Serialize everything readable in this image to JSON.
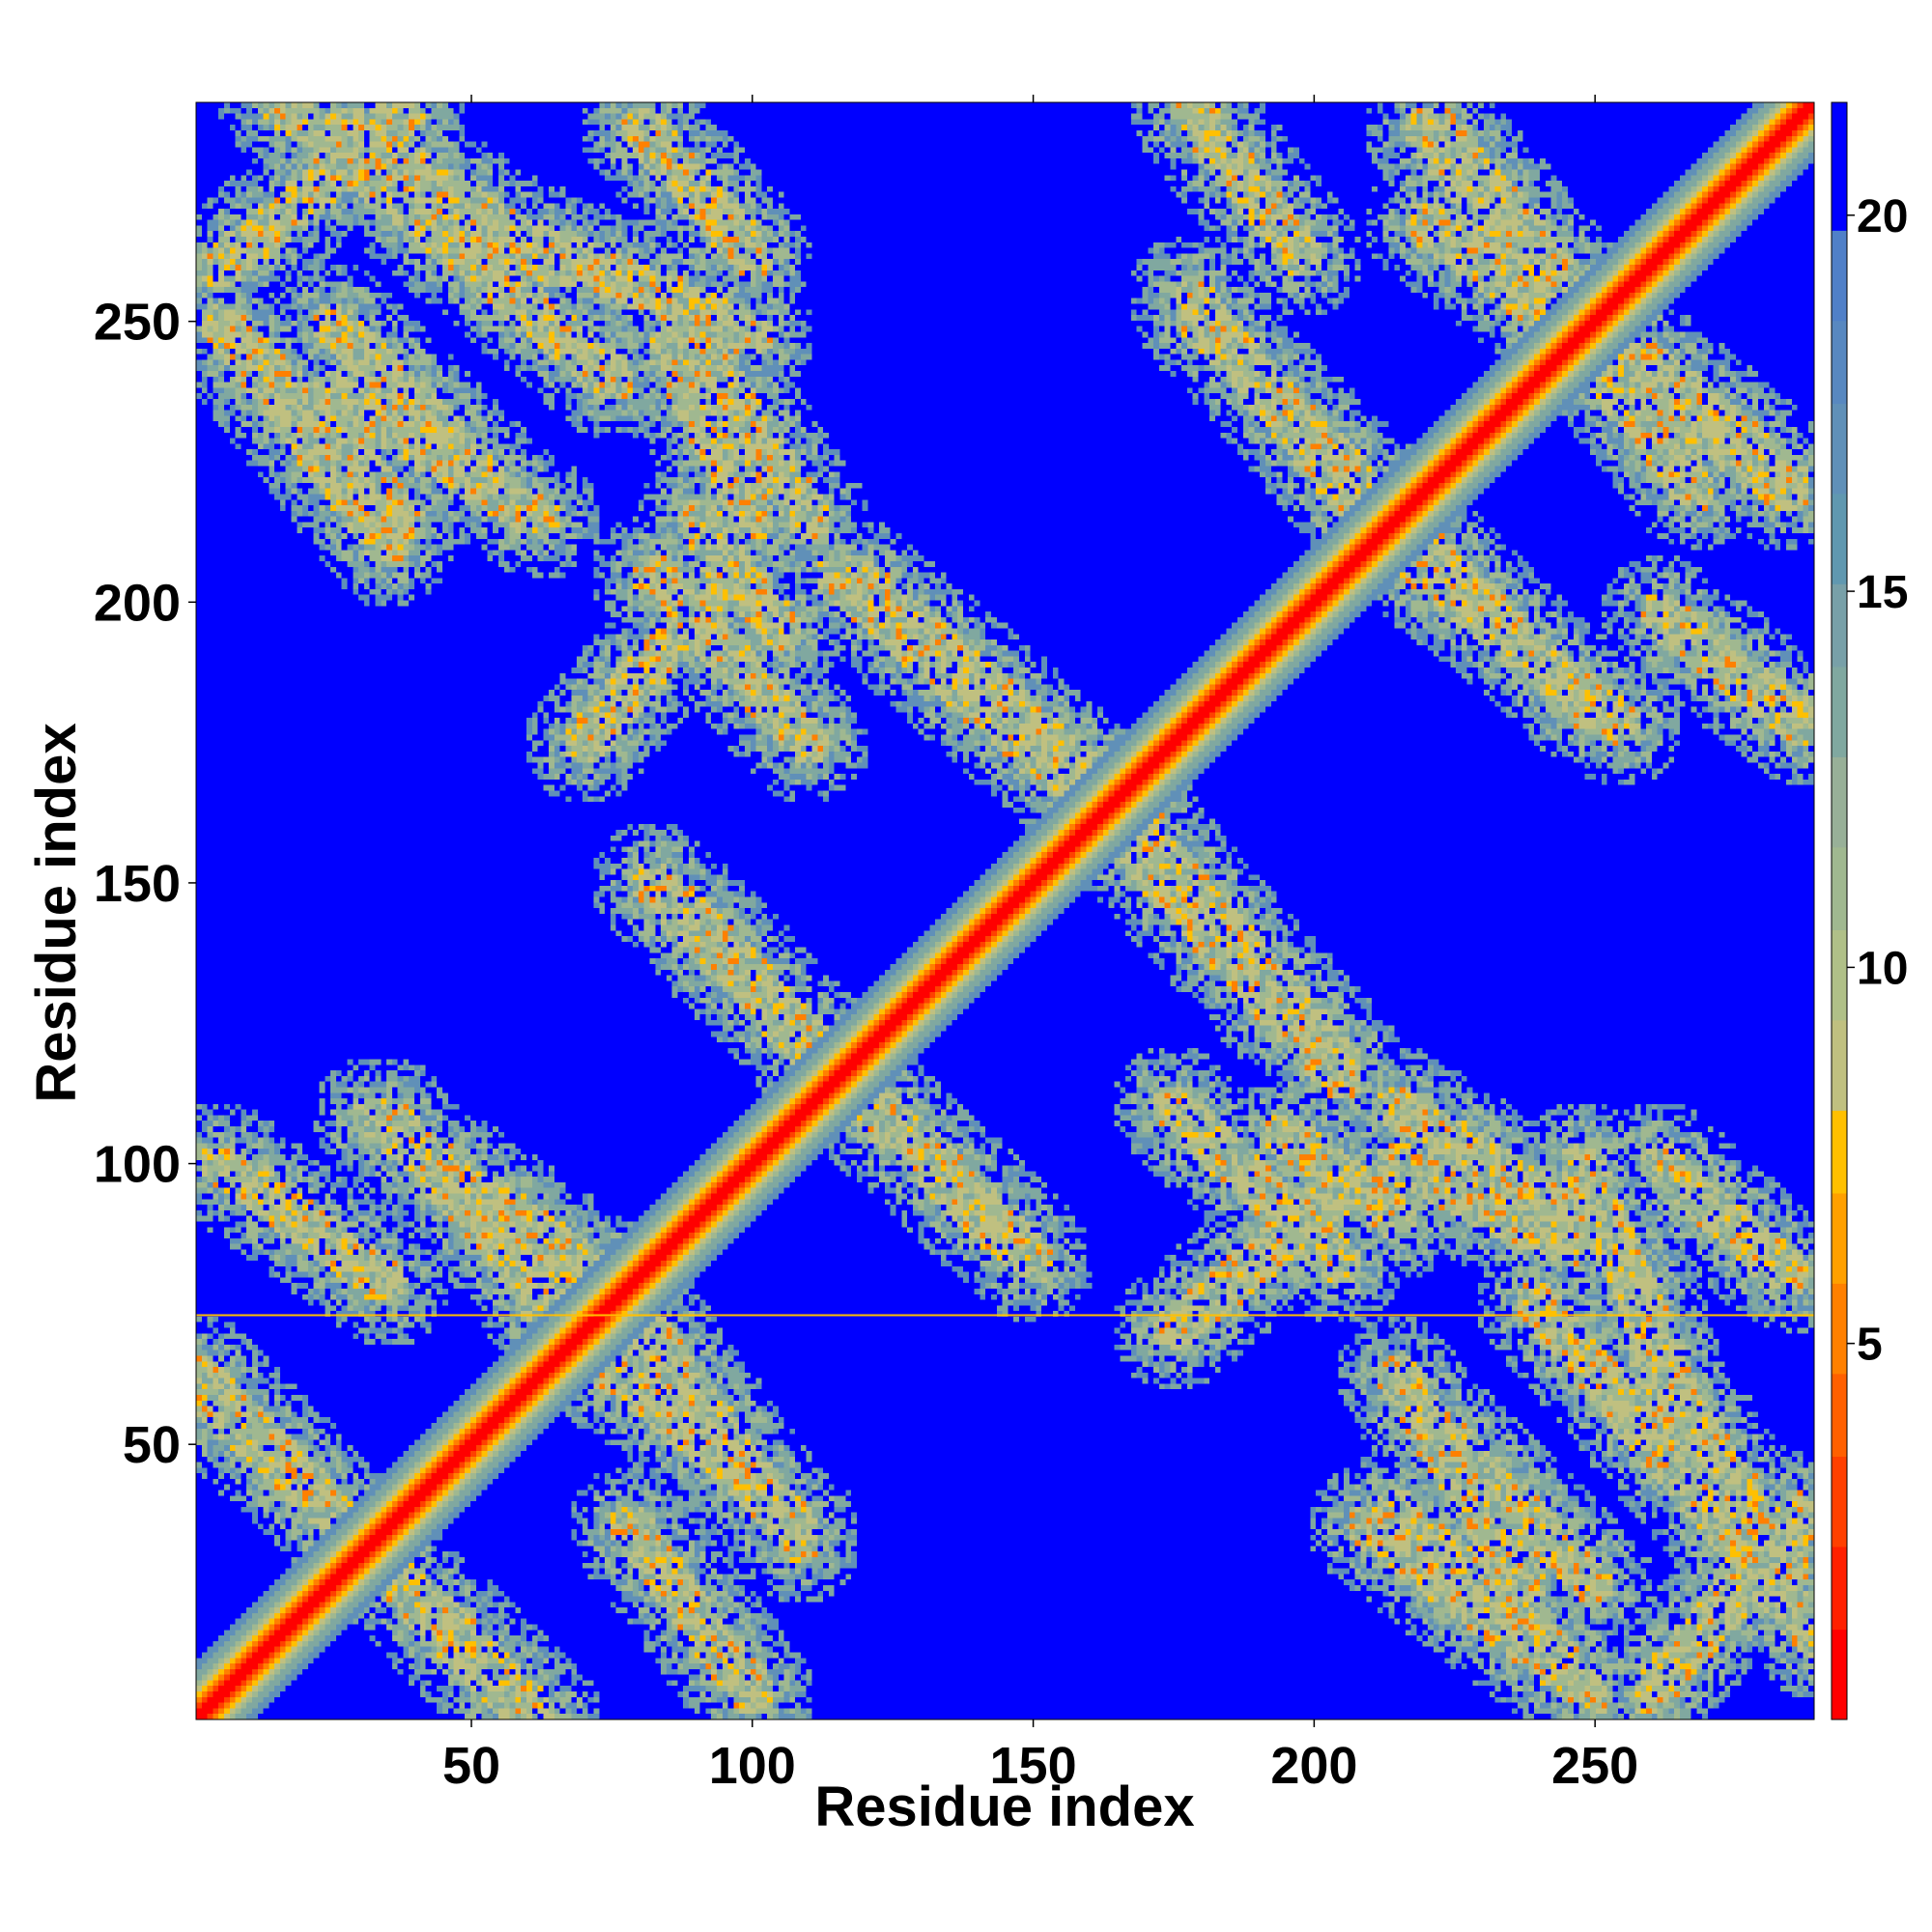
{
  "chart_data": {
    "type": "heatmap",
    "title": "",
    "xlabel": "Residue index",
    "ylabel": "Residue index",
    "xlim": [
      1,
      289
    ],
    "ylim": [
      1,
      289
    ],
    "x_ticks": [
      50,
      100,
      150,
      200,
      250
    ],
    "y_ticks": [
      50,
      100,
      150,
      200,
      250
    ],
    "colorbar": {
      "range": [
        0,
        21.5
      ],
      "ticks": [
        5,
        10,
        15,
        20
      ],
      "colors": [
        "#ff0000",
        "#ff4000",
        "#ff8000",
        "#ffc000",
        "#c0c080",
        "#a0b890",
        "#80a8a0",
        "#6090b8",
        "#0000ff"
      ]
    },
    "values_description_free": true,
    "diagonal": {
      "from": 1,
      "to": 289
    },
    "contact_bands": [
      {
        "from": [
          1,
          62
        ],
        "to": [
          60,
          1
        ]
      },
      {
        "from": [
          15,
          290
        ],
        "to": [
          75,
          240
        ]
      },
      {
        "from": [
          35,
          275
        ],
        "to": [
          100,
          248
        ]
      },
      {
        "from": [
          25,
          238
        ],
        "to": [
          62,
          215
        ]
      },
      {
        "from": [
          5,
          250
        ],
        "to": [
          35,
          210
        ]
      },
      {
        "from": [
          62,
          75
        ],
        "to": [
          108,
          35
        ]
      },
      {
        "from": [
          32,
          108
        ],
        "to": [
          75,
          78
        ]
      },
      {
        "from": [
          5,
          100
        ],
        "to": [
          35,
          78
        ]
      },
      {
        "from": [
          85,
          148
        ],
        "to": [
          112,
          120
        ]
      },
      {
        "from": [
          85,
          255
        ],
        "to": [
          110,
          215
        ]
      },
      {
        "from": [
          82,
          205
        ],
        "to": [
          110,
          175
        ]
      },
      {
        "from": [
          115,
          205
        ],
        "to": [
          165,
          160
        ]
      },
      {
        "from": [
          115,
          115
        ],
        "to": [
          150,
          82
        ]
      },
      {
        "from": [
          160,
          170
        ],
        "to": [
          205,
          118
        ]
      },
      {
        "from": [
          175,
          70
        ],
        "to": [
          205,
          95
        ]
      },
      {
        "from": [
          195,
          105
        ],
        "to": [
          215,
          90
        ]
      },
      {
        "from": [
          180,
          250
        ],
        "to": [
          215,
          215
        ]
      },
      {
        "from": [
          215,
          210
        ],
        "to": [
          255,
          178
        ]
      },
      {
        "from": [
          220,
          285
        ],
        "to": [
          268,
          220
        ]
      },
      {
        "from": [
          245,
          255
        ],
        "to": [
          285,
          222
        ]
      },
      {
        "from": [
          215,
          100
        ],
        "to": [
          245,
          85
        ]
      },
      {
        "from": [
          260,
          65
        ],
        "to": [
          285,
          28
        ]
      },
      {
        "from": [
          260,
          5
        ],
        "to": [
          288,
          38
        ]
      },
      {
        "from": [
          215,
          38
        ],
        "to": [
          245,
          10
        ]
      },
      {
        "from": [
          225,
          50
        ],
        "to": [
          250,
          25
        ]
      },
      {
        "from": [
          262,
          100
        ],
        "to": [
          285,
          80
        ]
      },
      {
        "from": [
          262,
          198
        ],
        "to": [
          288,
          178
        ]
      }
    ],
    "separator_line": {
      "y": 73,
      "color": "#ffc000"
    }
  }
}
